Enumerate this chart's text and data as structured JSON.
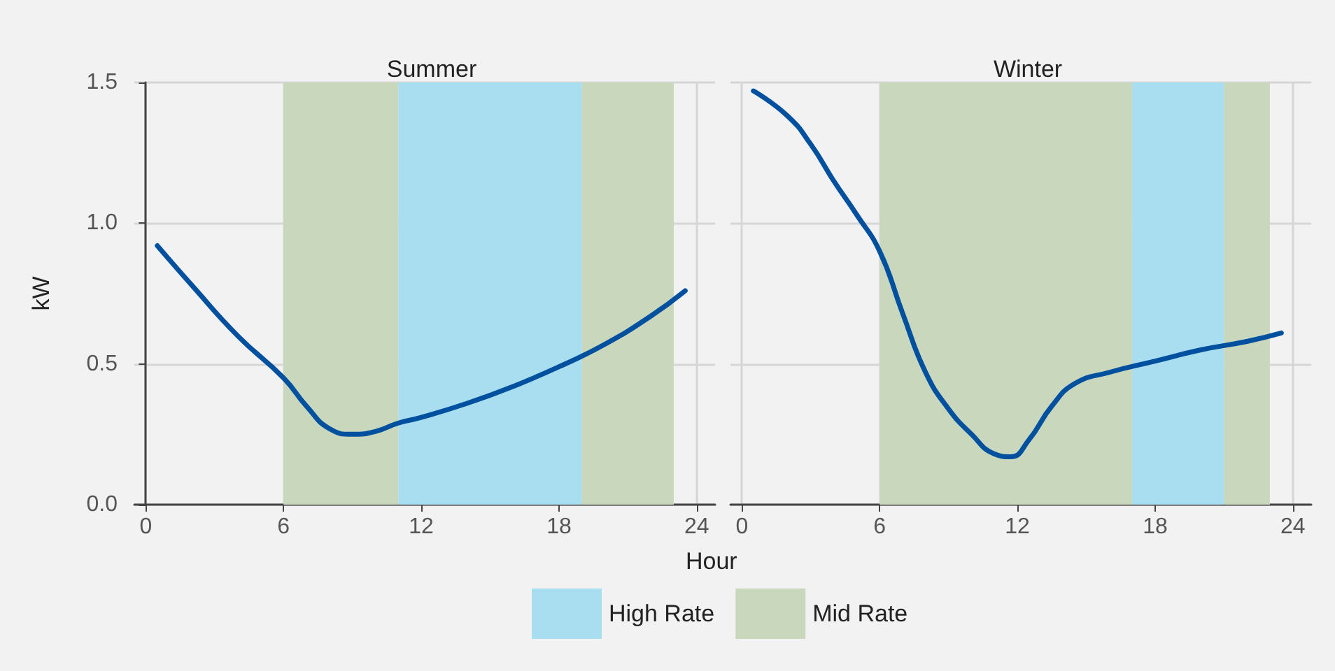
{
  "chart_data": [
    {
      "type": "line",
      "title": "Summer",
      "xlabel": "Hour",
      "ylabel": "kW",
      "xlim": [
        -0.5,
        24.8
      ],
      "xticks": [
        0,
        6,
        12,
        18,
        24
      ],
      "ylim": [
        0,
        1.5
      ],
      "yticks": [
        {
          "value": 0,
          "label": "0.0"
        },
        {
          "value": 0.5,
          "label": "0.5"
        },
        {
          "value": 1,
          "label": "1.0"
        },
        {
          "value": 1.5,
          "label": "1.5"
        }
      ],
      "grid": true,
      "legend": "bottom",
      "line_style": "solid",
      "marker": "none",
      "bands": [
        {
          "axis": "x",
          "from": 6,
          "to": 11,
          "label": "Mid Rate",
          "color": "#c9d8bd"
        },
        {
          "axis": "x",
          "from": 11,
          "to": 19,
          "label": "High Rate",
          "color": "#a9def0"
        },
        {
          "axis": "x",
          "from": 19,
          "to": 23,
          "color": "#c9d8bd"
        }
      ],
      "series": [
        {
          "color": "#0050a0",
          "x": [
            0.5,
            2,
            4,
            6,
            7,
            8,
            9,
            10,
            11,
            12,
            14,
            16,
            18,
            20,
            22,
            23.5
          ],
          "values": [
            0.92,
            0.78,
            0.6,
            0.45,
            0.35,
            0.27,
            0.25,
            0.26,
            0.29,
            0.31,
            0.36,
            0.42,
            0.49,
            0.57,
            0.67,
            0.76
          ]
        }
      ]
    },
    {
      "type": "line",
      "title": "Winter",
      "xlim": [
        -0.5,
        24.8
      ],
      "xticks": [
        0,
        6,
        12,
        18,
        24
      ],
      "ylim": [
        0,
        1.5
      ],
      "yticks": [
        0,
        0.5,
        1,
        1.5
      ],
      "grid": true,
      "tick_labels": "x",
      "line_style": "solid",
      "marker": "none",
      "bands": [
        {
          "axis": "x",
          "from": 6,
          "to": 17,
          "color": "#c9d8bd"
        },
        {
          "axis": "x",
          "from": 17,
          "to": 21,
          "color": "#a9def0"
        },
        {
          "axis": "x",
          "from": 21,
          "to": 23,
          "color": "#c9d8bd"
        }
      ],
      "series": [
        {
          "color": "#0050a0",
          "x": [
            0.5,
            2,
            3,
            4,
            5,
            6,
            7,
            8,
            9,
            10,
            11,
            11.7,
            12.5,
            13.5,
            14.5,
            16,
            18,
            20,
            22,
            23.5
          ],
          "values": [
            1.47,
            1.38,
            1.28,
            1.15,
            1.03,
            0.9,
            0.68,
            0.47,
            0.34,
            0.25,
            0.18,
            0.17,
            0.23,
            0.35,
            0.43,
            0.47,
            0.51,
            0.55,
            0.58,
            0.61
          ]
        }
      ]
    }
  ]
}
